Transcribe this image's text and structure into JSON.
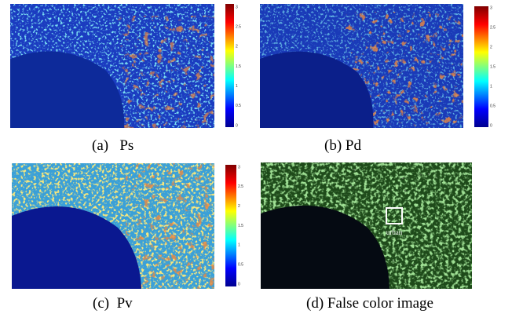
{
  "panels": [
    {
      "caption": "(a)   Ps"
    },
    {
      "caption": "(b) Pd"
    },
    {
      "caption": "(c)  Pv"
    },
    {
      "caption": "(d) False color image",
      "annotation": "urban"
    }
  ],
  "colorbar_ticks": [
    0,
    0.5,
    1,
    1.5,
    2,
    2.5,
    3
  ]
}
